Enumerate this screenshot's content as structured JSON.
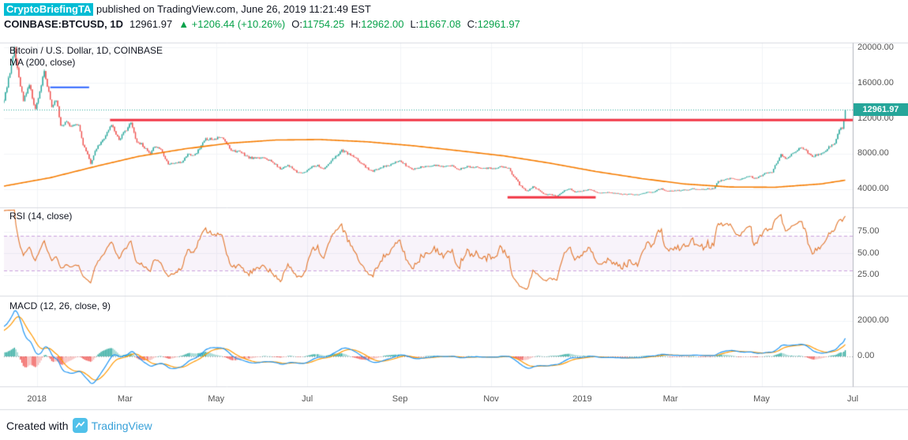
{
  "header": {
    "badge": "CryptoBriefingTA",
    "published": " published on TradingView.com, June 26, 2019 11:21:49 EST",
    "symbol": "COINBASE:BTCUSD, 1D",
    "last_price": "12961.97",
    "change": "▲ +1206.44 (+10.26%)",
    "ohlc": [
      {
        "label": "O:",
        "value": "11754.25"
      },
      {
        "label": "H:",
        "value": "12962.00"
      },
      {
        "label": "L:",
        "value": "11667.08"
      },
      {
        "label": "C:",
        "value": "12961.97"
      }
    ]
  },
  "footer": {
    "created_with": "Created with",
    "brand": "TradingView"
  },
  "colors": {
    "author_badge_bg": "#00bcd4",
    "green_text": "#07a24a",
    "brand_blue": "#38a1d9",
    "logo_bg": "#50c1ea",
    "text": "#131722",
    "axis_text": "#555555"
  },
  "chart_data": {
    "type": "candlestick",
    "title": "Bitcoin / U.S. Dollar, 1D, COINBASE",
    "overlays": [
      {
        "name": "MA (200, close)",
        "color": "#f57c00"
      }
    ],
    "x_range": [
      "2017-12-10",
      "2019-07-01"
    ],
    "noise_seed": 11,
    "noise_pct": 0.015,
    "warmup": [
      [
        "2017-10-20",
        6000
      ],
      [
        "2017-11-12",
        6600
      ],
      [
        "2017-11-26",
        9000
      ],
      [
        "2017-12-06",
        13500
      ]
    ],
    "close_anchors": [
      [
        "2017-12-10",
        14000
      ],
      [
        "2017-12-13",
        16500
      ],
      [
        "2017-12-17",
        19700
      ],
      [
        "2017-12-20",
        16700
      ],
      [
        "2017-12-23",
        14000
      ],
      [
        "2017-12-27",
        15800
      ],
      [
        "2017-12-31",
        13000
      ],
      [
        "2018-01-06",
        17150
      ],
      [
        "2018-01-11",
        13300
      ],
      [
        "2018-01-14",
        14200
      ],
      [
        "2018-01-17",
        11200
      ],
      [
        "2018-01-21",
        11600
      ],
      [
        "2018-01-24",
        11100
      ],
      [
        "2018-01-29",
        11200
      ],
      [
        "2018-02-01",
        9100
      ],
      [
        "2018-02-06",
        6950
      ],
      [
        "2018-02-10",
        8600
      ],
      [
        "2018-02-14",
        9500
      ],
      [
        "2018-02-20",
        11300
      ],
      [
        "2018-02-25",
        9600
      ],
      [
        "2018-03-05",
        11450
      ],
      [
        "2018-03-09",
        9300
      ],
      [
        "2018-03-12",
        9100
      ],
      [
        "2018-03-18",
        7900
      ],
      [
        "2018-03-21",
        8900
      ],
      [
        "2018-03-25",
        8500
      ],
      [
        "2018-03-30",
        6850
      ],
      [
        "2018-04-08",
        7050
      ],
      [
        "2018-04-12",
        7950
      ],
      [
        "2018-04-17",
        7900
      ],
      [
        "2018-04-24",
        9650
      ],
      [
        "2018-05-05",
        9800
      ],
      [
        "2018-05-11",
        8450
      ],
      [
        "2018-05-18",
        8100
      ],
      [
        "2018-05-23",
        7550
      ],
      [
        "2018-05-29",
        7450
      ],
      [
        "2018-06-02",
        7650
      ],
      [
        "2018-06-10",
        6750
      ],
      [
        "2018-06-13",
        6300
      ],
      [
        "2018-06-18",
        6750
      ],
      [
        "2018-06-24",
        5900
      ],
      [
        "2018-06-29",
        5850
      ],
      [
        "2018-07-04",
        6600
      ],
      [
        "2018-07-08",
        6700
      ],
      [
        "2018-07-12",
        6250
      ],
      [
        "2018-07-18",
        7350
      ],
      [
        "2018-07-24",
        8400
      ],
      [
        "2018-07-31",
        7750
      ],
      [
        "2018-08-06",
        6950
      ],
      [
        "2018-08-11",
        6250
      ],
      [
        "2018-08-14",
        6000
      ],
      [
        "2018-08-19",
        6500
      ],
      [
        "2018-08-25",
        6700
      ],
      [
        "2018-09-01",
        7200
      ],
      [
        "2018-09-05",
        6700
      ],
      [
        "2018-09-09",
        6250
      ],
      [
        "2018-09-15",
        6500
      ],
      [
        "2018-09-22",
        6700
      ],
      [
        "2018-09-29",
        6600
      ],
      [
        "2018-10-06",
        6600
      ],
      [
        "2018-10-11",
        6250
      ],
      [
        "2018-10-15",
        6550
      ],
      [
        "2018-10-24",
        6480
      ],
      [
        "2018-10-31",
        6340
      ],
      [
        "2018-11-04",
        6420
      ],
      [
        "2018-11-07",
        6530
      ],
      [
        "2018-11-13",
        6350
      ],
      [
        "2018-11-15",
        5650
      ],
      [
        "2018-11-19",
        4900
      ],
      [
        "2018-11-20",
        4450
      ],
      [
        "2018-11-25",
        3780
      ],
      [
        "2018-11-29",
        4270
      ],
      [
        "2018-12-03",
        3900
      ],
      [
        "2018-12-07",
        3420
      ],
      [
        "2018-12-11",
        3400
      ],
      [
        "2018-12-15",
        3200
      ],
      [
        "2018-12-20",
        3900
      ],
      [
        "2018-12-24",
        4050
      ],
      [
        "2018-12-27",
        3650
      ],
      [
        "2019-01-02",
        3850
      ],
      [
        "2019-01-06",
        4000
      ],
      [
        "2019-01-11",
        3650
      ],
      [
        "2019-01-20",
        3600
      ],
      [
        "2019-01-28",
        3430
      ],
      [
        "2019-02-04",
        3440
      ],
      [
        "2019-02-08",
        3380
      ],
      [
        "2019-02-12",
        3600
      ],
      [
        "2019-02-18",
        3700
      ],
      [
        "2019-02-23",
        4120
      ],
      [
        "2019-02-25",
        3810
      ],
      [
        "2019-03-04",
        3810
      ],
      [
        "2019-03-10",
        3910
      ],
      [
        "2019-03-16",
        4030
      ],
      [
        "2019-03-22",
        3990
      ],
      [
        "2019-03-30",
        4100
      ],
      [
        "2019-04-02",
        4870
      ],
      [
        "2019-04-08",
        5250
      ],
      [
        "2019-04-15",
        5060
      ],
      [
        "2019-04-23",
        5530
      ],
      [
        "2019-04-26",
        5150
      ],
      [
        "2019-05-03",
        5750
      ],
      [
        "2019-05-08",
        5950
      ],
      [
        "2019-05-11",
        6950
      ],
      [
        "2019-05-14",
        7950
      ],
      [
        "2019-05-17",
        7350
      ],
      [
        "2019-05-21",
        7950
      ],
      [
        "2019-05-27",
        8750
      ],
      [
        "2019-05-31",
        8300
      ],
      [
        "2019-06-04",
        7700
      ],
      [
        "2019-06-08",
        7950
      ],
      [
        "2019-06-12",
        8150
      ],
      [
        "2019-06-16",
        8900
      ],
      [
        "2019-06-19",
        9100
      ],
      [
        "2019-06-22",
        10700
      ],
      [
        "2019-06-24",
        11000
      ],
      [
        "2019-06-25",
        11754.25
      ],
      [
        "2019-06-26",
        12961.97
      ]
    ],
    "last_candle": {
      "open": 11754.25,
      "high": 12962.0,
      "low": 11667.08,
      "close": 12961.97
    },
    "ma200_points": [
      [
        "2017-12-10",
        4350
      ],
      [
        "2018-01-10",
        5300
      ],
      [
        "2018-02-10",
        6600
      ],
      [
        "2018-03-10",
        7700
      ],
      [
        "2018-04-10",
        8550
      ],
      [
        "2018-05-10",
        9200
      ],
      [
        "2018-06-10",
        9550
      ],
      [
        "2018-07-10",
        9600
      ],
      [
        "2018-08-10",
        9350
      ],
      [
        "2018-09-10",
        8900
      ],
      [
        "2018-10-10",
        8350
      ],
      [
        "2018-11-10",
        7750
      ],
      [
        "2018-12-10",
        6950
      ],
      [
        "2019-01-10",
        6000
      ],
      [
        "2019-02-10",
        5200
      ],
      [
        "2019-03-10",
        4600
      ],
      [
        "2019-04-10",
        4250
      ],
      [
        "2019-05-10",
        4220
      ],
      [
        "2019-06-10",
        4600
      ],
      [
        "2019-07-01",
        5150
      ]
    ],
    "price_axis": {
      "ticks": [
        20000,
        16000,
        12000,
        8000,
        4000
      ],
      "scale": {
        "min": 2040,
        "max": 20450
      },
      "last_price": 12961.97,
      "last_label": "12961.97"
    },
    "drawings": [
      {
        "type": "segment",
        "name": "resistance-line",
        "price": 11800,
        "from": "2018-02-19",
        "to": "2019-07-01",
        "color": "#f23645",
        "width": 3
      },
      {
        "type": "segment",
        "name": "support-line",
        "price": 3080,
        "from": "2018-11-12",
        "to": "2019-01-10",
        "color": "#f23645",
        "width": 3
      },
      {
        "type": "segment",
        "name": "short-blue-line",
        "price": 15500,
        "from": "2018-01-10",
        "to": "2018-02-05",
        "color": "#2962ff",
        "width": 2
      },
      {
        "type": "price-line",
        "name": "last-price-line",
        "price": 12961.97,
        "color": "#26a69a"
      }
    ],
    "rsi": {
      "label": "RSI (14, close)",
      "period": 14,
      "band": [
        30,
        70
      ],
      "ticks": [
        75,
        50,
        25
      ],
      "scale": {
        "min": 3,
        "max": 101
      }
    },
    "macd": {
      "label": "MACD (12, 26, close, 9)",
      "fast": 12,
      "slow": 26,
      "signal": 9,
      "ticks": [
        2000,
        0
      ],
      "scale": {
        "min": -1600,
        "max": 3333
      }
    },
    "time_axis": {
      "labels": [
        [
          "2018-01-01",
          "2018"
        ],
        [
          "2018-03-01",
          "Mar"
        ],
        [
          "2018-05-01",
          "May"
        ],
        [
          "2018-07-01",
          "Jul"
        ],
        [
          "2018-09-01",
          "Sep"
        ],
        [
          "2018-11-01",
          "Nov"
        ],
        [
          "2019-01-01",
          "2019"
        ],
        [
          "2019-03-01",
          "Mar"
        ],
        [
          "2019-05-01",
          "May"
        ],
        [
          "2019-07-01",
          "Jul"
        ]
      ]
    },
    "colors": {
      "up": "#26a69a",
      "down": "#ef5350",
      "ma": "#f57c00",
      "grid": "#f0f3f7",
      "rsi_line": "#e2772e",
      "rsi_band_line": "#c9a0dc",
      "rsi_band_fill": "rgba(155,80,190,0.07)",
      "macd": "#2196f3",
      "signal": "#ff9800",
      "hist_pos": "#26a69a",
      "hist_pos_weak": "#8fd0ca",
      "hist_neg": "#ef5350",
      "hist_neg_weak": "#f6b6b4",
      "zero_line": "#9598a1",
      "badge_bg": "#26a69a",
      "border": "#d8dbe0",
      "axis_line": "#b2b5be"
    }
  }
}
